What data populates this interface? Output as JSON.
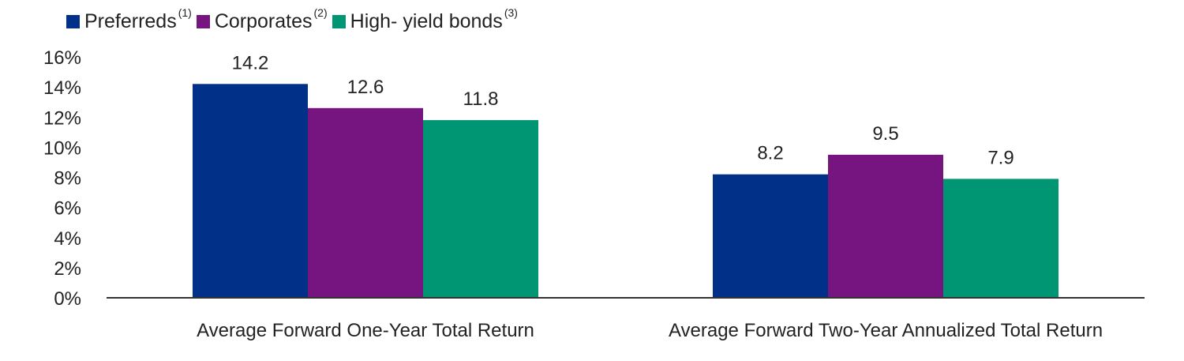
{
  "legend": [
    {
      "label": "Preferreds",
      "note": "(1)",
      "color": "#003087"
    },
    {
      "label": "Corporates",
      "note": "(2)",
      "color": "#76157f"
    },
    {
      "label": "High- yield bonds",
      "note": "(3)",
      "color": "#009673"
    }
  ],
  "chart_data": {
    "type": "bar",
    "categories": [
      "Average Forward One-Year Total Return",
      "Average Forward Two-Year Annualized Total Return"
    ],
    "series": [
      {
        "name": "Preferreds",
        "color": "#003087",
        "values": [
          14.2,
          8.2
        ]
      },
      {
        "name": "Corporates",
        "color": "#76157f",
        "values": [
          12.6,
          9.5
        ]
      },
      {
        "name": "High- yield bonds",
        "color": "#009673",
        "values": [
          11.8,
          7.9
        ]
      }
    ],
    "data_labels": [
      [
        "14.2",
        "8.2"
      ],
      [
        "12.6",
        "9.5"
      ],
      [
        "11.8",
        "7.9"
      ]
    ],
    "yticks": [
      "0%",
      "2%",
      "4%",
      "6%",
      "8%",
      "10%",
      "12%",
      "14%",
      "16%"
    ],
    "ylim": [
      0,
      16
    ],
    "grid": false,
    "legend_position": "top-left"
  }
}
